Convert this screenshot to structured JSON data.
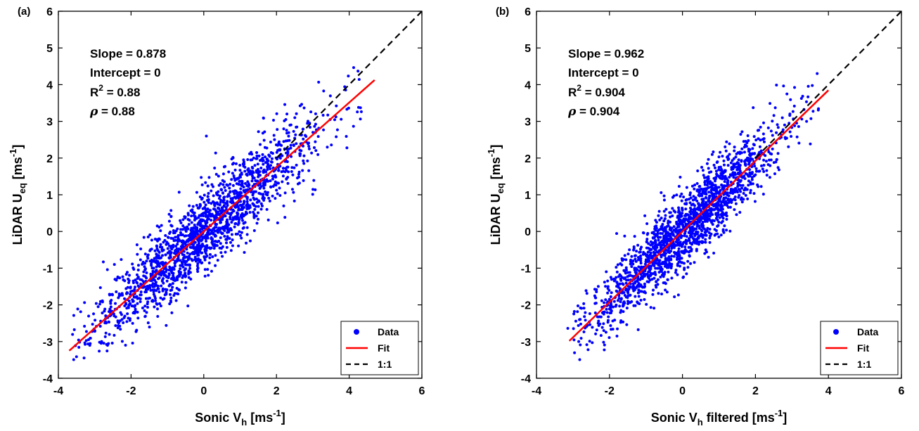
{
  "chart_data": [
    {
      "type": "scatter",
      "panel_label": "(a)",
      "xlabel": {
        "main": "Sonic V",
        "sub": "h",
        "suffix": "",
        "unit": "[ms",
        "unit_sup": "-1",
        "unit_close": "]"
      },
      "ylabel": {
        "main": "LiDAR U",
        "sub": "eq",
        "unit": "[ms",
        "unit_sup": "-1",
        "unit_close": "]"
      },
      "xlim": [
        -4,
        6
      ],
      "ylim": [
        -4,
        6
      ],
      "xticks": [
        "-4",
        "-2",
        "0",
        "2",
        "4",
        "6"
      ],
      "yticks": [
        "-4",
        "-3",
        "-2",
        "-1",
        "0",
        "1",
        "2",
        "3",
        "4",
        "5",
        "6"
      ],
      "grid": false,
      "stats": {
        "slope": "Slope = 0.878",
        "intercept": "Intercept = 0",
        "r2_prefix": "R",
        "r2_sup": "2",
        "r2_value": " = 0.88",
        "rho_symbol": "ρ",
        "rho_value": " = 0.88"
      },
      "fit": {
        "slope": 0.878,
        "intercept": 0,
        "x": [
          -3.7,
          4.7
        ]
      },
      "one_to_one": {
        "x": [
          2.0,
          6.0
        ]
      },
      "scatter": {
        "n": 1800,
        "x_mean": 0,
        "x_sd": 1.55,
        "noise_sd": 0.55,
        "x_range": [
          -3.7,
          4.7
        ],
        "seed": 11
      },
      "series": [
        {
          "name": "Data",
          "color": "#0000ff"
        },
        {
          "name": "Fit",
          "color": "#ff0000"
        },
        {
          "name": "1:1",
          "color": "#000000"
        }
      ],
      "legend_position": "bottom-right"
    },
    {
      "type": "scatter",
      "panel_label": "(b)",
      "xlabel": {
        "main": "Sonic V",
        "sub": "h",
        "suffix": " filtered",
        "unit": "[ms",
        "unit_sup": "-1",
        "unit_close": "]"
      },
      "ylabel": {
        "main": "LiDAR U",
        "sub": "eq",
        "unit": "[ms",
        "unit_sup": "-1",
        "unit_close": "]"
      },
      "xlim": [
        -4,
        6
      ],
      "ylim": [
        -4,
        6
      ],
      "xticks": [
        "-4",
        "-2",
        "0",
        "2",
        "4",
        "6"
      ],
      "yticks": [
        "-4",
        "-3",
        "-2",
        "-1",
        "0",
        "1",
        "2",
        "3",
        "4",
        "5",
        "6"
      ],
      "grid": false,
      "stats": {
        "slope": "Slope = 0.962",
        "intercept": "Intercept = 0",
        "r2_prefix": "R",
        "r2_sup": "2",
        "r2_value": " = 0.904",
        "rho_symbol": "ρ",
        "rho_value": " = 0.904"
      },
      "fit": {
        "slope": 0.962,
        "intercept": 0,
        "x": [
          -3.1,
          4.0
        ]
      },
      "one_to_one": {
        "x": [
          2.0,
          6.0
        ]
      },
      "scatter": {
        "n": 1800,
        "x_mean": 0,
        "x_sd": 1.35,
        "noise_sd": 0.5,
        "x_range": [
          -3.2,
          4.2
        ],
        "seed": 23
      },
      "series": [
        {
          "name": "Data",
          "color": "#0000ff"
        },
        {
          "name": "Fit",
          "color": "#ff0000"
        },
        {
          "name": "1:1",
          "color": "#000000"
        }
      ],
      "legend_position": "bottom-right"
    }
  ]
}
